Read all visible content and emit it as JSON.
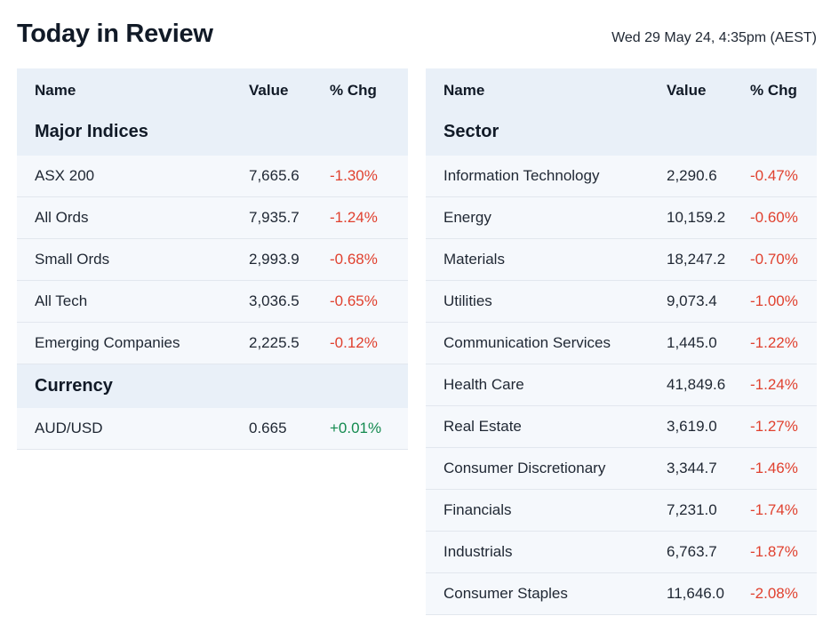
{
  "header": {
    "title": "Today in Review",
    "timestamp": "Wed 29 May 24, 4:35pm (AEST)"
  },
  "columns": {
    "name": "Name",
    "value": "Value",
    "chg": "% Chg"
  },
  "colors": {
    "negative": "#e0412f",
    "positive": "#138a4f",
    "header_bg": "#e9f0f8",
    "row_bg": "#f5f8fc"
  },
  "indices": {
    "group_label": "Major Indices",
    "rows": [
      {
        "name": "ASX 200",
        "value": "7,665.6",
        "chg": "-1.30%"
      },
      {
        "name": "All Ords",
        "value": "7,935.7",
        "chg": "-1.24%"
      },
      {
        "name": "Small Ords",
        "value": "2,993.9",
        "chg": "-0.68%"
      },
      {
        "name": "All Tech",
        "value": "3,036.5",
        "chg": "-0.65%"
      },
      {
        "name": "Emerging Companies",
        "value": "2,225.5",
        "chg": "-0.12%"
      }
    ]
  },
  "currency": {
    "group_label": "Currency",
    "rows": [
      {
        "name": "AUD/USD",
        "value": "0.665",
        "chg": "+0.01%"
      }
    ]
  },
  "sectors": {
    "group_label": "Sector",
    "rows": [
      {
        "name": "Information Technology",
        "value": "2,290.6",
        "chg": "-0.47%"
      },
      {
        "name": "Energy",
        "value": "10,159.2",
        "chg": "-0.60%"
      },
      {
        "name": "Materials",
        "value": "18,247.2",
        "chg": "-0.70%"
      },
      {
        "name": "Utilities",
        "value": "9,073.4",
        "chg": "-1.00%"
      },
      {
        "name": "Communication Services",
        "value": "1,445.0",
        "chg": "-1.22%"
      },
      {
        "name": "Health Care",
        "value": "41,849.6",
        "chg": "-1.24%"
      },
      {
        "name": "Real Estate",
        "value": "3,619.0",
        "chg": "-1.27%"
      },
      {
        "name": "Consumer Discretionary",
        "value": "3,344.7",
        "chg": "-1.46%"
      },
      {
        "name": "Financials",
        "value": "7,231.0",
        "chg": "-1.74%"
      },
      {
        "name": "Industrials",
        "value": "6,763.7",
        "chg": "-1.87%"
      },
      {
        "name": "Consumer Staples",
        "value": "11,646.0",
        "chg": "-2.08%"
      }
    ]
  }
}
